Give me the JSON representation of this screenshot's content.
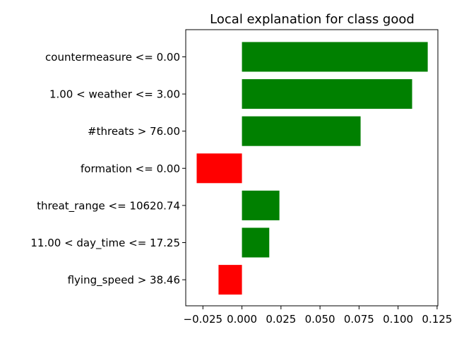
{
  "chart_data": {
    "type": "bar",
    "orientation": "horizontal",
    "title": "Local explanation for class good",
    "xlabel": "",
    "ylabel": "",
    "xlim": [
      -0.036,
      0.1255
    ],
    "grid": false,
    "categories": [
      "countermeasure <= 0.00",
      "1.00 < weather <= 3.00",
      "#threats > 76.00",
      "formation <= 0.00",
      "threat_range <= 10620.74",
      "11.00 < day_time <= 17.25",
      "flying_speed > 38.46"
    ],
    "values": [
      0.119,
      0.109,
      0.076,
      -0.029,
      0.024,
      0.0175,
      -0.015
    ],
    "x_ticks": [
      -0.025,
      0.0,
      0.025,
      0.05,
      0.075,
      0.1,
      0.125
    ],
    "x_tick_labels": [
      "−0.025",
      "0.000",
      "0.025",
      "0.050",
      "0.075",
      "0.100",
      "0.125"
    ],
    "colors": {
      "positive": "#008000",
      "negative": "#ff0000"
    }
  }
}
